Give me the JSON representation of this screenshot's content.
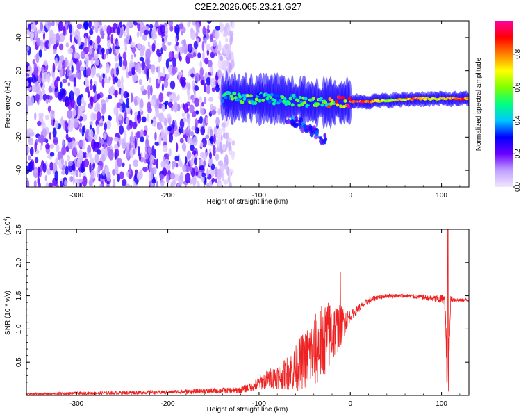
{
  "title": "C2E2.2026.065.23.21.G27",
  "chart_data": [
    {
      "type": "heatmap",
      "xlabel": "Height of straight line (km)",
      "ylabel": "Frequency (Hz)",
      "xlim": [
        -355,
        130
      ],
      "ylim": [
        -50,
        50
      ],
      "xticks": [
        -300,
        -200,
        -100,
        0,
        100
      ],
      "yticks": [
        -40,
        -20,
        0,
        20,
        40
      ],
      "colorbar": {
        "label": "Normalized spectral amplitude",
        "range": [
          0,
          1
        ],
        "ticks": [
          "0.0",
          "0.2",
          "0.4",
          "0.6",
          "0.8"
        ],
        "tick_values": [
          0.0,
          0.2,
          0.4,
          0.6,
          0.8
        ],
        "colors": [
          "#f2e6ff",
          "#c0a0ff",
          "#6a00ff",
          "#0000ff",
          "#00c8ff",
          "#00ff80",
          "#80ff00",
          "#ffff00",
          "#ff8000",
          "#ff0000",
          "#ff00a0"
        ]
      },
      "noise_region_km": [
        -355,
        -128
      ],
      "signal_track": [
        {
          "x": -140,
          "y": 4,
          "amp": 0.5
        },
        {
          "x": -110,
          "y": 3,
          "amp": 0.5
        },
        {
          "x": -80,
          "y": 3,
          "amp": 0.45
        },
        {
          "x": -60,
          "y": 2,
          "amp": 0.45
        },
        {
          "x": -40,
          "y": 1,
          "amp": 0.5
        },
        {
          "x": -20,
          "y": 1,
          "amp": 0.7
        },
        {
          "x": 0,
          "y": 1.5,
          "amp": 0.9
        },
        {
          "x": 20,
          "y": 1.5,
          "amp": 0.9
        },
        {
          "x": 40,
          "y": 2,
          "amp": 0.6
        },
        {
          "x": 70,
          "y": 3,
          "amp": 0.85
        },
        {
          "x": 95,
          "y": 3,
          "amp": 0.7
        },
        {
          "x": 120,
          "y": 3,
          "amp": 0.85
        }
      ]
    },
    {
      "type": "line",
      "xlabel": "Height of straight line (km)",
      "ylabel": "SNR (10 * v/v)",
      "yscale_label": "(x10",
      "yscale_exp": "4",
      "xlim": [
        -355,
        130
      ],
      "ylim": [
        0,
        2.5
      ],
      "xticks": [
        -300,
        -200,
        -100,
        0,
        100
      ],
      "yticks": [
        "0.5",
        "1.0",
        "1.5",
        "2.0",
        "2.5"
      ],
      "ytick_values": [
        0.5,
        1.0,
        1.5,
        2.0,
        2.5
      ],
      "line_color": "#ee2222",
      "envelope": {
        "x": [
          -355,
          -200,
          -120,
          -105,
          -90,
          -75,
          -60,
          -50,
          -40,
          -30,
          -20,
          -10,
          0,
          10,
          20,
          30,
          40,
          60,
          80,
          95,
          103,
          107,
          110,
          120,
          130
        ],
        "y": [
          0.02,
          0.05,
          0.08,
          0.15,
          0.25,
          0.3,
          0.4,
          0.55,
          0.65,
          0.8,
          0.95,
          1.05,
          1.2,
          1.32,
          1.42,
          1.48,
          1.5,
          1.5,
          1.48,
          1.45,
          1.45,
          0.25,
          1.45,
          1.43,
          1.44
        ],
        "amp": [
          0.02,
          0.03,
          0.05,
          0.08,
          0.15,
          0.2,
          0.35,
          0.45,
          0.55,
          0.6,
          0.5,
          0.3,
          0.08,
          0.06,
          0.05,
          0.04,
          0.03,
          0.03,
          0.04,
          0.06,
          0.08,
          0.5,
          0.05,
          0.03,
          0.03
        ]
      },
      "peaks": [
        {
          "x": -11,
          "y": 1.85
        },
        {
          "x": 107,
          "y": 2.5
        },
        {
          "x": 106,
          "y": 0.2
        }
      ]
    }
  ]
}
